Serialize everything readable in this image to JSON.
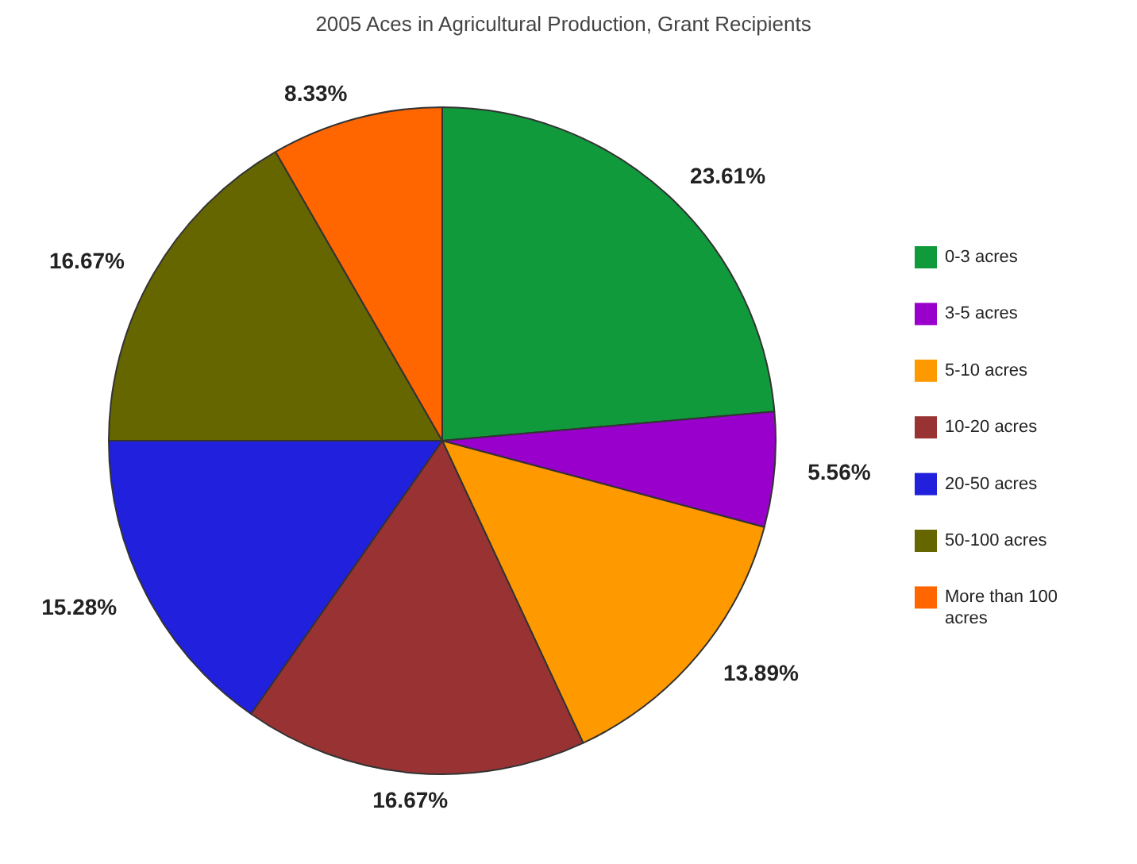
{
  "chart_data": {
    "type": "pie",
    "title": "2005 Aces in Agricultural Production, Grant Recipients",
    "categories": [
      "0-3 acres",
      "3-5 acres",
      "5-10 acres",
      "10-20 acres",
      "20-50 acres",
      "50-100 acres",
      "More than 100 acres"
    ],
    "values": [
      23.61,
      5.56,
      13.89,
      16.67,
      15.28,
      16.67,
      8.33
    ],
    "colors": [
      "#109a3c",
      "#9900cc",
      "#ff9900",
      "#993333",
      "#2020dd",
      "#666600",
      "#ff6600"
    ],
    "value_labels": [
      "23.61%",
      "5.56%",
      "13.89%",
      "16.67%",
      "15.28%",
      "16.67%",
      "8.33%"
    ],
    "legend": "right"
  }
}
